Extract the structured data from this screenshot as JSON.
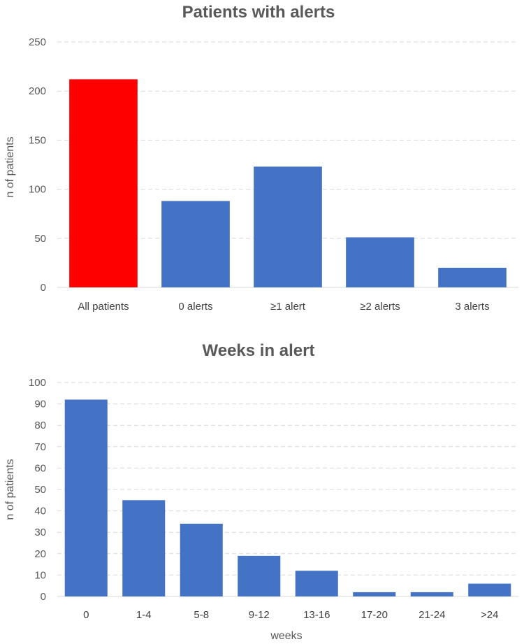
{
  "chart_data": [
    {
      "type": "bar",
      "title": "Patients with alerts",
      "xlabel": "",
      "ylabel": "n of patients",
      "ylim": [
        0,
        250
      ],
      "yticks": [
        0,
        50,
        100,
        150,
        200,
        250
      ],
      "grid": true,
      "categories": [
        "All patients",
        "0 alerts",
        "≥1 alert",
        "≥2 alerts",
        "3 alerts"
      ],
      "values": [
        212,
        88,
        123,
        51,
        20
      ],
      "colors": [
        "#ff0000",
        "#4472c4",
        "#4472c4",
        "#4472c4",
        "#4472c4"
      ]
    },
    {
      "type": "bar",
      "title": "Weeks in alert",
      "xlabel": "weeks",
      "ylabel": "n of patients",
      "ylim": [
        0,
        100
      ],
      "yticks": [
        0,
        10,
        20,
        30,
        40,
        50,
        60,
        70,
        80,
        90,
        100
      ],
      "grid": true,
      "categories": [
        "0",
        "1-4",
        "5-8",
        "9-12",
        "13-16",
        "17-20",
        "21-24",
        ">24"
      ],
      "values": [
        92,
        45,
        34,
        19,
        12,
        2,
        2,
        6
      ],
      "colors": [
        "#4472c4",
        "#4472c4",
        "#4472c4",
        "#4472c4",
        "#4472c4",
        "#4472c4",
        "#4472c4",
        "#4472c4"
      ]
    }
  ]
}
